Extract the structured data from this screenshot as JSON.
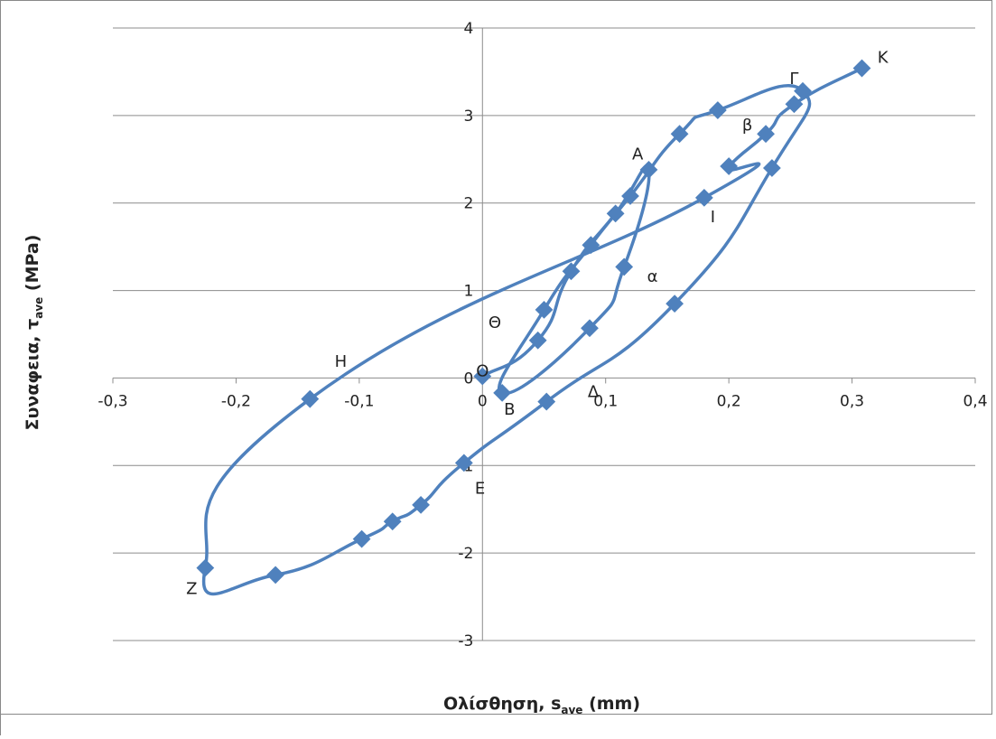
{
  "chart_data": {
    "type": "scatter",
    "xlabel": {
      "main": "Ολίσθηση, s",
      "sub": "ave",
      "unit": " (mm)"
    },
    "ylabel": {
      "main": "Συναφεια, τ",
      "sub": "ave",
      "unit": " (MPa)"
    },
    "xlim": [
      -0.3,
      0.4
    ],
    "ylim": [
      -3,
      4
    ],
    "xticks": [
      "-0,3",
      "-0,2",
      "-0,1",
      "0",
      "0,1",
      "0,2",
      "0,3",
      "0,4"
    ],
    "yticks": [
      "-3",
      "-2",
      "-1",
      "0",
      "1",
      "2",
      "3",
      "4"
    ],
    "grid": "horizontal",
    "legend": "none",
    "color": "#4f81bd",
    "series": [
      {
        "x": [
          0,
          0.045,
          0.072,
          0.108,
          0.135,
          0.115,
          0.087,
          0.016,
          0.05,
          0.088,
          0.12,
          0.16,
          0.191,
          0.26,
          0.235,
          0.156,
          0.052,
          -0.015,
          -0.05,
          -0.073,
          -0.098,
          -0.168,
          -0.225,
          -0.14,
          0.18,
          0.2,
          0.23,
          0.253,
          0.308
        ],
        "y": [
          0.02,
          0.43,
          1.22,
          1.88,
          2.38,
          1.27,
          0.57,
          -0.17,
          0.78,
          1.52,
          2.08,
          2.79,
          3.06,
          3.28,
          2.4,
          0.85,
          -0.27,
          -0.97,
          -1.45,
          -1.64,
          -1.84,
          -2.25,
          -2.17,
          -0.24,
          2.06,
          2.42,
          2.79,
          3.13,
          3.54
        ]
      }
    ],
    "annotations": [
      {
        "text": "O",
        "x": 0,
        "y": 0.02
      },
      {
        "text": "Θ",
        "x": 0.01,
        "y": 0.57
      },
      {
        "text": "A",
        "x": 0.126,
        "y": 2.5
      },
      {
        "text": "B",
        "x": 0.022,
        "y": -0.42
      },
      {
        "text": "Δ",
        "x": 0.09,
        "y": -0.22
      },
      {
        "text": "Γ",
        "x": 0.253,
        "y": 3.36
      },
      {
        "text": "K",
        "x": 0.325,
        "y": 3.6
      },
      {
        "text": "β",
        "x": 0.215,
        "y": 2.83
      },
      {
        "text": "I",
        "x": 0.187,
        "y": 1.78
      },
      {
        "text": "α",
        "x": 0.138,
        "y": 1.1
      },
      {
        "text": "H",
        "x": -0.115,
        "y": 0.13
      },
      {
        "text": "E",
        "x": -0.002,
        "y": -1.32
      },
      {
        "text": "Z",
        "x": -0.236,
        "y": -2.47
      }
    ]
  }
}
